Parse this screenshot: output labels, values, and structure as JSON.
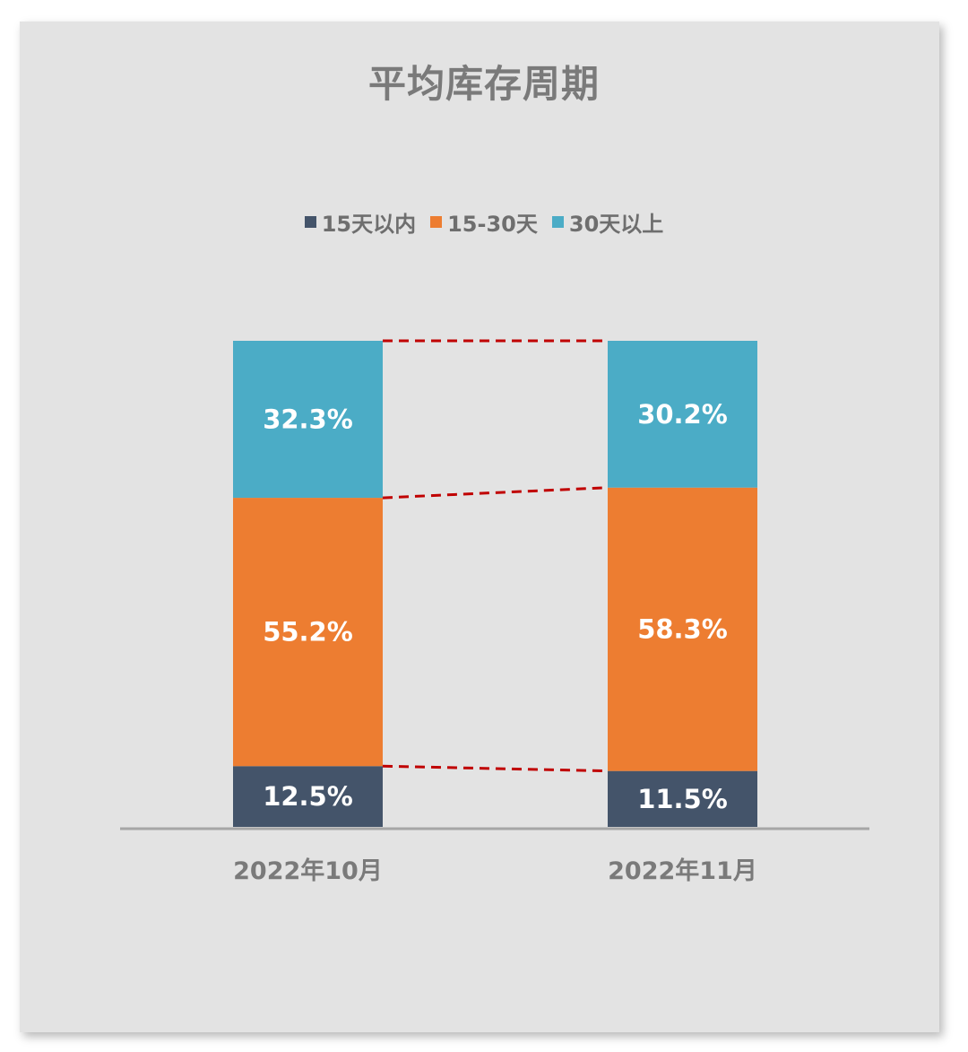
{
  "colors": {
    "card_bg": "#e3e3e3",
    "connector": "#c00000",
    "axis": "#a6a6a6",
    "text": "#7a7a7a"
  },
  "chart_data": {
    "type": "bar",
    "stacked": true,
    "percent_stacked": true,
    "title": "平均库存周期",
    "legend_position": "top",
    "categories": [
      "2022年10月",
      "2022年11月"
    ],
    "series": [
      {
        "name": "15天以内",
        "values": [
          12.5,
          11.5
        ],
        "labels": [
          "12.5%",
          "11.5%"
        ],
        "color": "#44546a"
      },
      {
        "name": "15-30天",
        "values": [
          55.2,
          58.3
        ],
        "labels": [
          "55.2%",
          "58.3%"
        ],
        "color": "#ed7d31"
      },
      {
        "name": "30天以上",
        "values": [
          32.3,
          30.2
        ],
        "labels": [
          "32.3%",
          "30.2%"
        ],
        "color": "#4bacc6"
      }
    ],
    "ylim": [
      0,
      100
    ],
    "grid": false,
    "series_lines": true
  }
}
